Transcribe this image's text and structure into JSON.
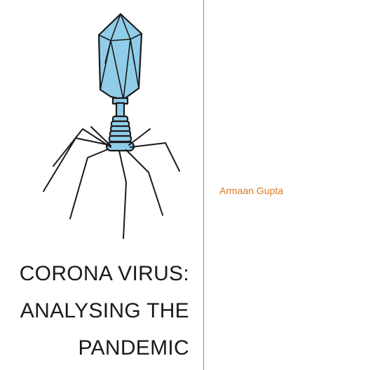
{
  "document": {
    "title_lines": [
      "CORONA VIRUS:",
      "ANALYSING THE",
      "PANDEMIC"
    ],
    "author": "Armaan Gupta"
  },
  "colors": {
    "divider": "#d9843c",
    "author_text": "#d97b22",
    "virus_fill": "#90cde8",
    "outline": "#1a1a1a"
  },
  "icons": {
    "illustration": "bacteriophage-icon"
  }
}
